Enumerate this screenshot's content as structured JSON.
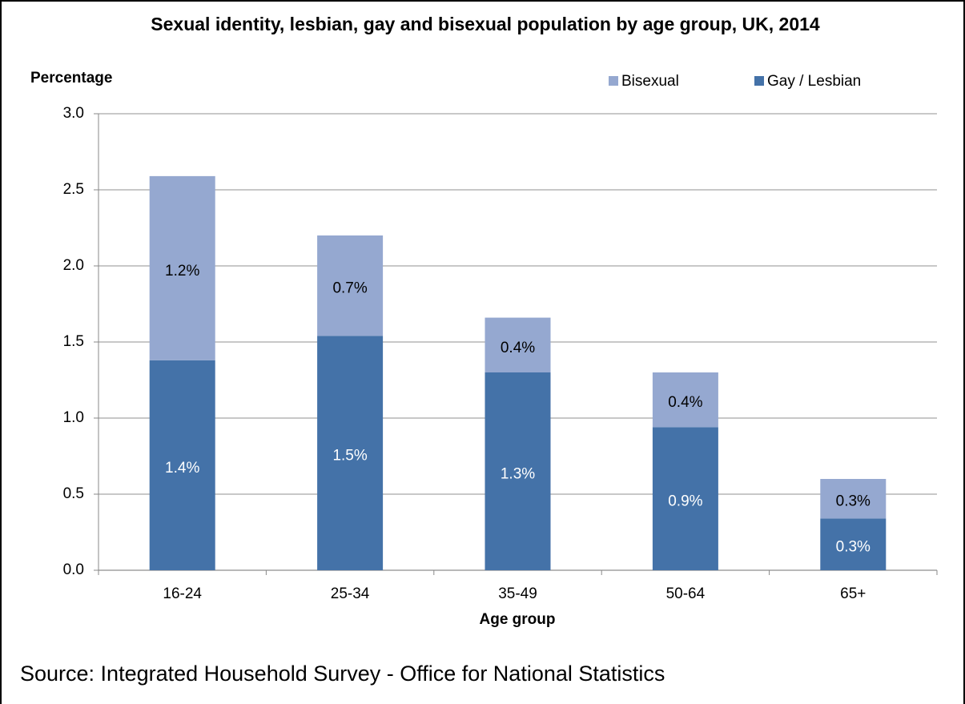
{
  "chart_data": {
    "type": "stacked_bar",
    "title": "Sexual identity, lesbian, gay and bisexual population by age group, UK, 2014",
    "y_label": "Percentage",
    "x_label": "Age group",
    "source": "Source: Integrated Household Survey - Office for National Statistics",
    "categories": [
      "16-24",
      "25-34",
      "35-49",
      "50-64",
      "65+"
    ],
    "series": [
      {
        "name": "Gay / Lesbian",
        "color": "#4472a8",
        "label_color": "#ffffff",
        "values": [
          1.38,
          1.54,
          1.3,
          0.94,
          0.34
        ],
        "value_labels": [
          "1.4%",
          "1.5%",
          "1.3%",
          "0.9%",
          "0.3%"
        ]
      },
      {
        "name": "Bisexual",
        "color": "#95a8d0",
        "label_color": "#000000",
        "values": [
          1.21,
          0.66,
          0.36,
          0.36,
          0.26
        ],
        "value_labels": [
          "1.2%",
          "0.7%",
          "0.4%",
          "0.4%",
          "0.3%"
        ]
      }
    ],
    "ylim": [
      0,
      3
    ],
    "yticks": [
      {
        "value": 0,
        "label": "0.0"
      },
      0.5,
      {
        "value": 1,
        "label": "1.0"
      },
      1.5,
      {
        "value": 2,
        "label": "2.0"
      },
      2.5,
      {
        "value": 3,
        "label": "3.0"
      }
    ],
    "grid": true
  }
}
